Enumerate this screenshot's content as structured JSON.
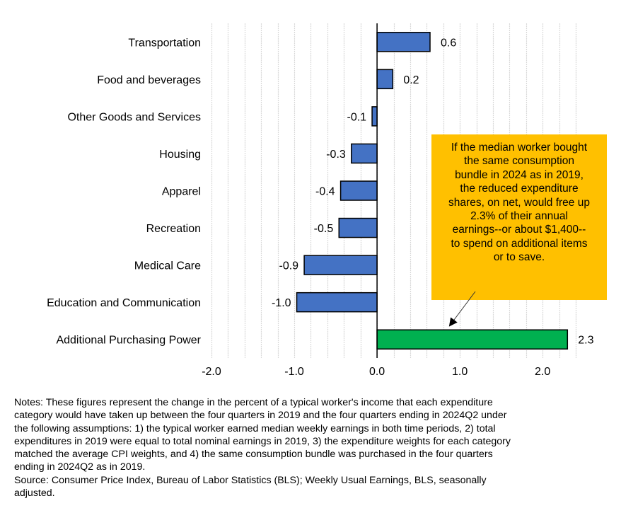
{
  "chart_data": {
    "type": "bar",
    "orientation": "horizontal",
    "title": "",
    "xlabel": "",
    "ylabel": "",
    "categories": [
      "Transportation",
      "Food and beverages",
      "Other Goods and Services",
      "Housing",
      "Apparel",
      "Recreation",
      "Medical Care",
      "Education and Communication",
      "Additional Purchasing Power"
    ],
    "values": [
      0.64,
      0.19,
      -0.06,
      -0.31,
      -0.44,
      -0.46,
      -0.88,
      -0.97,
      2.3
    ],
    "data_labels": [
      "0.6",
      "0.2",
      "-0.1",
      "-0.3",
      "-0.4",
      "-0.5",
      "-0.9",
      "-1.0",
      "2.3"
    ],
    "bar_colors": [
      "#4472C4",
      "#4472C4",
      "#4472C4",
      "#4472C4",
      "#4472C4",
      "#4472C4",
      "#4472C4",
      "#4472C4",
      "#00B050"
    ],
    "xlim": [
      -2.0,
      2.4
    ],
    "xticks": [
      -2.0,
      -1.0,
      0.0,
      1.0,
      2.0
    ],
    "xtick_labels": [
      "-2.0",
      "-1.0",
      "0.0",
      "1.0",
      "2.0"
    ],
    "grid": {
      "vertical": true,
      "step": 0.2,
      "style": "dashed",
      "color": "#D9D9D9"
    },
    "legend": "none",
    "annotation": {
      "text": "If the median worker bought the same consumption bundle in 2024 as in 2019, the reduced expenditure shares, on net, would free up 2.3% of their annual earnings--or about $1,400--to spend on additional items or to save.",
      "lines": [
        "If the median worker bought",
        "the same consumption",
        "bundle  in 2024 as in 2019,",
        "the reduced expenditure",
        "shares, on net, would free up",
        "2.3% of their annual",
        "earnings--or about $1,400--",
        "to spend on additional items",
        "or to save."
      ],
      "background": "#FFC000",
      "points_to": "Additional Purchasing Power"
    }
  },
  "notes": {
    "lines": [
      "Notes: These figures represent the change in the percent of a typical worker's income that each expenditure",
      "category would have taken up between the four quarters in 2019 and the four quarters ending in 2024Q2 under",
      "the following assumptions: 1) the typical worker earned median weekly earnings in both time periods, 2) total",
      "expenditures in 2019 were equal to total nominal earnings in 2019, 3) the expenditure weights for each category",
      "matched the average CPI weights, and 4) the same consumption bundle was purchased in the four quarters",
      "ending in 2024Q2 as in 2019."
    ],
    "source_lines": [
      "Source: Consumer Price Index, Bureau of Labor Statistics (BLS); Weekly Usual Earnings, BLS, seasonally",
      "adjusted."
    ]
  }
}
